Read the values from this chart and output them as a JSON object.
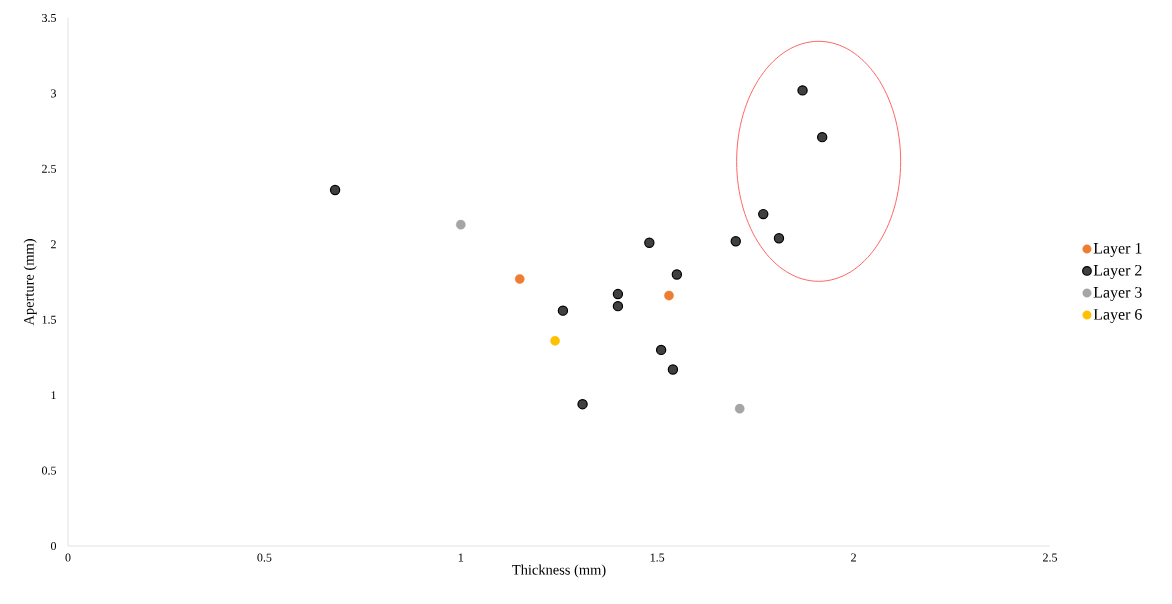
{
  "chart_data": {
    "type": "scatter",
    "xlabel": "Thickness (mm)",
    "ylabel": "Aperture (mm)",
    "xlim": [
      0,
      2.5
    ],
    "xticks": [
      0,
      0.5,
      1,
      1.5,
      2,
      2.5
    ],
    "ylim": [
      0,
      3.5
    ],
    "yticks": [
      0,
      0.5,
      1,
      1.5,
      2,
      2.5,
      3,
      3.5
    ],
    "legend": "right",
    "marker": "circle",
    "series": [
      {
        "name": "Layer 1",
        "color": "#ed7d31",
        "x": [
          1.15,
          1.53
        ],
        "values": [
          1.77,
          1.66
        ]
      },
      {
        "name": "Layer 2",
        "color": "#404040",
        "x": [
          0.68,
          1.26,
          1.31,
          1.4,
          1.4,
          1.48,
          1.51,
          1.54,
          1.55,
          1.7,
          1.77,
          1.81,
          1.87,
          1.92
        ],
        "values": [
          2.36,
          1.56,
          0.94,
          1.67,
          1.59,
          2.01,
          1.3,
          1.17,
          1.8,
          2.02,
          2.2,
          2.04,
          3.02,
          2.71
        ]
      },
      {
        "name": "Layer 3",
        "color": "#a5a5a5",
        "x": [
          1.0,
          1.71
        ],
        "values": [
          2.13,
          0.91
        ]
      },
      {
        "name": "Layer 6",
        "color": "#ffc000",
        "x": [
          1.24
        ],
        "values": [
          1.36
        ]
      }
    ]
  }
}
